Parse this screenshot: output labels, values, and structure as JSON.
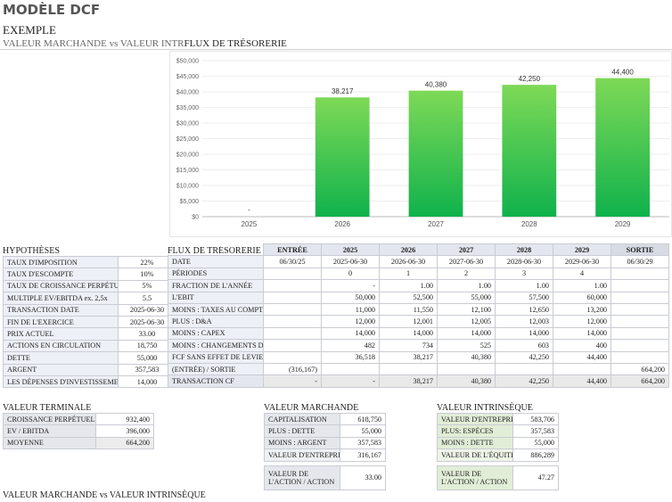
{
  "header": {
    "title": "MODÈLE DCF",
    "subtitle": "EXEMPLE",
    "section_left": "VALEUR MARCHANDE vs VALEUR INTR",
    "section_right": "FLUX DE TRÉSORERIE"
  },
  "chart_data": {
    "type": "bar",
    "categories": [
      "2025",
      "2026",
      "2027",
      "2028",
      "2029"
    ],
    "values": [
      0,
      38217,
      40380,
      42250,
      44400
    ],
    "value_labels": [
      "-",
      "38,217",
      "40,380",
      "42,250",
      "44,400"
    ],
    "y_ticks": [
      "$0",
      "$5,000",
      "$10,000",
      "$15,000",
      "$20,000",
      "$25,000",
      "$30,000",
      "$35,000",
      "$40,000",
      "$45,000",
      "$50,000"
    ],
    "ylim": [
      0,
      50000
    ],
    "bar_color_top": "#7ed957",
    "bar_color_bottom": "#10b24c",
    "title": "",
    "xlabel": "",
    "ylabel": ""
  },
  "hypotheses": {
    "title": "HYPOTHÈSES",
    "rows": [
      {
        "label": "TAUX D'IMPOSITION",
        "value": "22%"
      },
      {
        "label": "TAUX D'ESCOMPTE",
        "value": "10%"
      },
      {
        "label": "TAUX DE CROISSANCE PERPÉTUELLE",
        "value": "5%"
      },
      {
        "label": "MULTIPLE EV/EBITDA  ex. 2,5x",
        "value": "5.5"
      },
      {
        "label": "TRANSACTION DATE",
        "value": "2025-06-30"
      },
      {
        "label": "FIN DE L'EXERCICE",
        "value": "2025-06-30"
      },
      {
        "label": "PRIX ACTUEL",
        "value": "33.00"
      },
      {
        "label": "ACTIONS EN CIRCULATION",
        "value": "18,750"
      },
      {
        "label": "DETTE",
        "value": "55,000"
      },
      {
        "label": "ARGENT",
        "value": "357,583"
      },
      {
        "label": "LES DÉPENSES D'INVESTISSEMENT",
        "value": "14,000"
      }
    ]
  },
  "cashflow": {
    "title": "FLUX DE TRÉSORERIE ACTUALISÉS",
    "headers": [
      "ENTRÉE",
      "2025",
      "2026",
      "2027",
      "2028",
      "2029",
      "SORTIE"
    ],
    "rows": [
      {
        "label": "DATE",
        "cells": [
          "06/30/25",
          "2025-06-30",
          "2026-06-30",
          "2027-06-30",
          "2028-06-30",
          "2029-06-30",
          "06/30/29"
        ]
      },
      {
        "label": "PÉRIODES",
        "cells": [
          "",
          "0",
          "1",
          "2",
          "3",
          "4",
          ""
        ]
      },
      {
        "label": "FRACTION DE L'ANNÉE",
        "cells": [
          "",
          "-",
          "1.00",
          "1.00",
          "1.00",
          "1.00",
          ""
        ]
      },
      {
        "label": "L'EBIT",
        "cells": [
          "",
          "50,000",
          "52,500",
          "55,000",
          "57,500",
          "60,000",
          ""
        ]
      },
      {
        "label": "MOINS : TAXES AU COMPTANT",
        "cells": [
          "",
          "11,000",
          "11,550",
          "12,100",
          "12,650",
          "13,200",
          ""
        ]
      },
      {
        "label": "PLUS : D&A",
        "cells": [
          "",
          "12,000",
          "12,001",
          "12,005",
          "12,003",
          "12,000",
          ""
        ]
      },
      {
        "label": "MOINS : CAPEX",
        "cells": [
          "",
          "14,000",
          "14,000",
          "14,000",
          "14,000",
          "14,000",
          ""
        ]
      },
      {
        "label": "MOINS : CHANGEMENTS DANS LA CNO",
        "cells": [
          "",
          "482",
          "734",
          "525",
          "603",
          "400",
          ""
        ]
      },
      {
        "label": "FCF SANS EFFET DE LEVIER",
        "cells": [
          "",
          "36,518",
          "38,217",
          "40,380",
          "42,250",
          "44,400",
          ""
        ]
      },
      {
        "label": "(ENTRÉE) / SORTIE",
        "cells": [
          "(316,167)",
          "",
          "",
          "",
          "",
          "",
          "664,200"
        ]
      },
      {
        "label": "TRANSACTION CF",
        "cells": [
          "-",
          "-",
          "38,217",
          "40,380",
          "42,250",
          "44,400",
          "664,200"
        ]
      }
    ]
  },
  "terminal": {
    "title": "VALEUR TERMINALE",
    "rows": [
      {
        "label": "CROISSANCE PERPÉTUELLE",
        "value": "932,400"
      },
      {
        "label": "EV / EBITDA",
        "value": "396,000"
      },
      {
        "label": "MOYENNE",
        "value": "664,200"
      }
    ]
  },
  "market": {
    "title": "VALEUR MARCHANDE",
    "rows": [
      {
        "label": "CAPITALISATION",
        "value": "618,750"
      },
      {
        "label": "PLUS : DETTE",
        "value": "55,000"
      },
      {
        "label": "MOINS : ARGENT",
        "value": "357,583"
      },
      {
        "label": "VALEUR D'ENTREPRISE",
        "value": "316,167"
      }
    ],
    "per_share_label": "VALEUR DE L'ACTION / ACTION",
    "per_share_value": "33.00"
  },
  "intrinsic": {
    "title": "VALEUR INTRINSÈQUE",
    "rows": [
      {
        "label": "VALEUR D'ENTREPRISE",
        "value": "583,706"
      },
      {
        "label": "PLUS: ESPÈCES",
        "value": "357,583"
      },
      {
        "label": "MOINS : DETTE",
        "value": "55,000"
      },
      {
        "label": "VALEUR DE L'ÉQUITÉ",
        "value": "886,289"
      }
    ],
    "per_share_label": "VALEUR DE L'ACTION / ACTION",
    "per_share_value": "47.27"
  },
  "footer": {
    "section": "VALEUR MARCHANDE vs VALEUR INTRINSÈQUE"
  }
}
